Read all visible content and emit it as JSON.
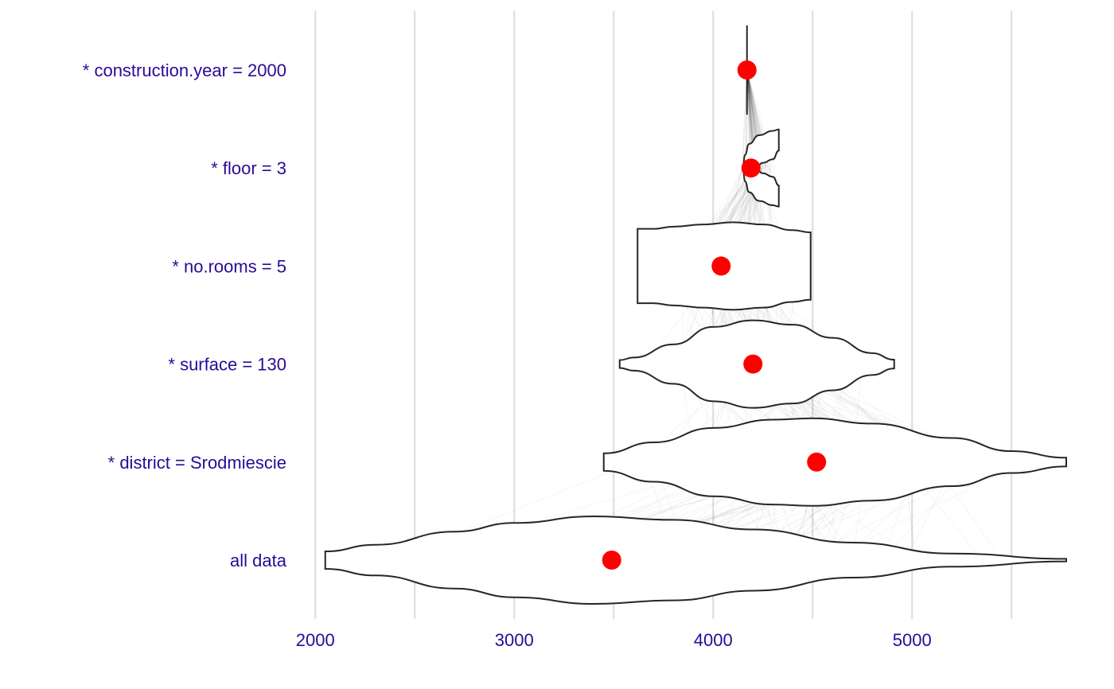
{
  "chart_data": {
    "type": "violin",
    "title": "",
    "xlabel": "",
    "ylabel": "",
    "xlim": [
      1995,
      5775
    ],
    "xticks": [
      2000,
      3000,
      4000,
      5000
    ],
    "xtick_labels": [
      "2000",
      "3000",
      "4000",
      "5000"
    ],
    "minor_gridlines": [
      2500,
      3500,
      4500,
      5500
    ],
    "grid": "vertical",
    "categories": [
      "* construction.year = 2000",
      "* floor = 3",
      "* no.rooms = 5",
      "* surface = 130",
      "* district = Srodmiescie",
      "all data"
    ],
    "means": [
      4170,
      4190,
      4040,
      4200,
      4520,
      3490
    ],
    "violins": [
      {
        "label": "* construction.year = 2000",
        "min": 4170,
        "max": 4170,
        "shape": []
      },
      {
        "label": "* floor = 3",
        "min": 4110,
        "max": 4330,
        "shape": [
          [
            4150,
            0.05
          ],
          [
            4160,
            0.3
          ],
          [
            4180,
            0.55
          ],
          [
            4230,
            0.75
          ],
          [
            4300,
            0.85
          ],
          [
            4330,
            0.88
          ],
          [
            4330,
            0.4
          ],
          [
            4300,
            0.2
          ],
          [
            4250,
            0.12
          ],
          [
            4220,
            0.05
          ]
        ]
      },
      {
        "label": "* no.rooms = 5",
        "min": 3620,
        "max": 4490,
        "shape": [
          [
            3620,
            0.85
          ],
          [
            3700,
            0.85
          ],
          [
            3800,
            0.9
          ],
          [
            3950,
            0.95
          ],
          [
            4100,
            1.0
          ],
          [
            4250,
            0.95
          ],
          [
            4400,
            0.82
          ],
          [
            4490,
            0.77
          ]
        ]
      },
      {
        "label": "* surface = 130",
        "min": 3530,
        "max": 4910,
        "shape": [
          [
            3530,
            0.09
          ],
          [
            3600,
            0.15
          ],
          [
            3800,
            0.45
          ],
          [
            4000,
            0.85
          ],
          [
            4200,
            1.0
          ],
          [
            4400,
            0.9
          ],
          [
            4600,
            0.6
          ],
          [
            4800,
            0.25
          ],
          [
            4910,
            0.1
          ]
        ]
      },
      {
        "label": "* district = Srodmiescie",
        "min": 3450,
        "max": 5775,
        "shape": [
          [
            3450,
            0.2
          ],
          [
            3700,
            0.45
          ],
          [
            4000,
            0.78
          ],
          [
            4300,
            0.97
          ],
          [
            4500,
            1.0
          ],
          [
            4800,
            0.88
          ],
          [
            5200,
            0.55
          ],
          [
            5500,
            0.25
          ],
          [
            5775,
            0.1
          ]
        ]
      },
      {
        "label": "all data",
        "min": 2050,
        "max": 5775,
        "shape": [
          [
            2050,
            0.2
          ],
          [
            2300,
            0.35
          ],
          [
            2700,
            0.65
          ],
          [
            3000,
            0.85
          ],
          [
            3400,
            1.0
          ],
          [
            3800,
            0.92
          ],
          [
            4200,
            0.7
          ],
          [
            4700,
            0.4
          ],
          [
            5200,
            0.15
          ],
          [
            5775,
            0.03
          ]
        ]
      }
    ]
  }
}
